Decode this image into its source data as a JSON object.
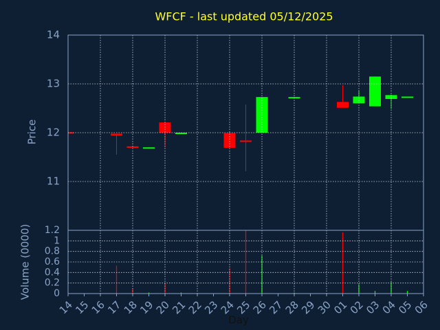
{
  "chart_data": [
    {
      "type": "candlestick",
      "title": "WFCF - last updated 05/12/2025",
      "y_label": "Price",
      "categories": [
        "14",
        "15",
        "16",
        "17",
        "18",
        "19",
        "20",
        "21",
        "22",
        "23",
        "24",
        "25",
        "26",
        "27",
        "28",
        "29",
        "30",
        "01",
        "02",
        "03",
        "04",
        "05",
        "06"
      ],
      "open": [
        12.01,
        null,
        null,
        11.98,
        11.72,
        11.68,
        12.21,
        11.99,
        null,
        null,
        11.99,
        11.84,
        12.0,
        null,
        12.71,
        null,
        null,
        12.63,
        12.6,
        12.54,
        12.69,
        12.72,
        null
      ],
      "high": [
        12.01,
        null,
        null,
        11.98,
        11.72,
        11.7,
        12.21,
        12.0,
        null,
        null,
        12.0,
        12.58,
        12.73,
        null,
        12.73,
        null,
        null,
        12.97,
        12.87,
        13.15,
        12.78,
        12.74,
        null
      ],
      "low": [
        12.0,
        null,
        null,
        11.55,
        11.69,
        11.68,
        11.7,
        11.99,
        null,
        null,
        11.69,
        11.21,
        12.0,
        null,
        12.71,
        null,
        null,
        12.51,
        12.6,
        12.54,
        12.49,
        12.72,
        null
      ],
      "close": [
        12.0,
        null,
        null,
        11.94,
        11.69,
        11.7,
        12.0,
        12.0,
        null,
        null,
        11.69,
        11.81,
        12.73,
        null,
        12.73,
        null,
        null,
        12.51,
        12.74,
        13.15,
        12.77,
        12.74,
        null
      ],
      "up_color": "#00ff00",
      "down_color": "#ff0000",
      "ylim": [
        10,
        14
      ],
      "yticks": [
        11,
        12,
        13,
        14
      ],
      "grid": true
    },
    {
      "type": "bar",
      "y_label": "Volume (0000)",
      "x_label": "Day",
      "values": [
        null,
        null,
        null,
        0.53,
        0.1,
        0.02,
        0.2,
        0.02,
        null,
        null,
        0.48,
        1.2,
        0.72,
        null,
        0.02,
        null,
        null,
        1.16,
        0.17,
        0.05,
        0.22,
        0.05,
        null
      ],
      "ylim": [
        0,
        1.2
      ],
      "yticks": [
        0,
        0.2,
        0.4,
        0.6,
        0.8,
        1,
        1.2
      ],
      "grid": true
    }
  ]
}
